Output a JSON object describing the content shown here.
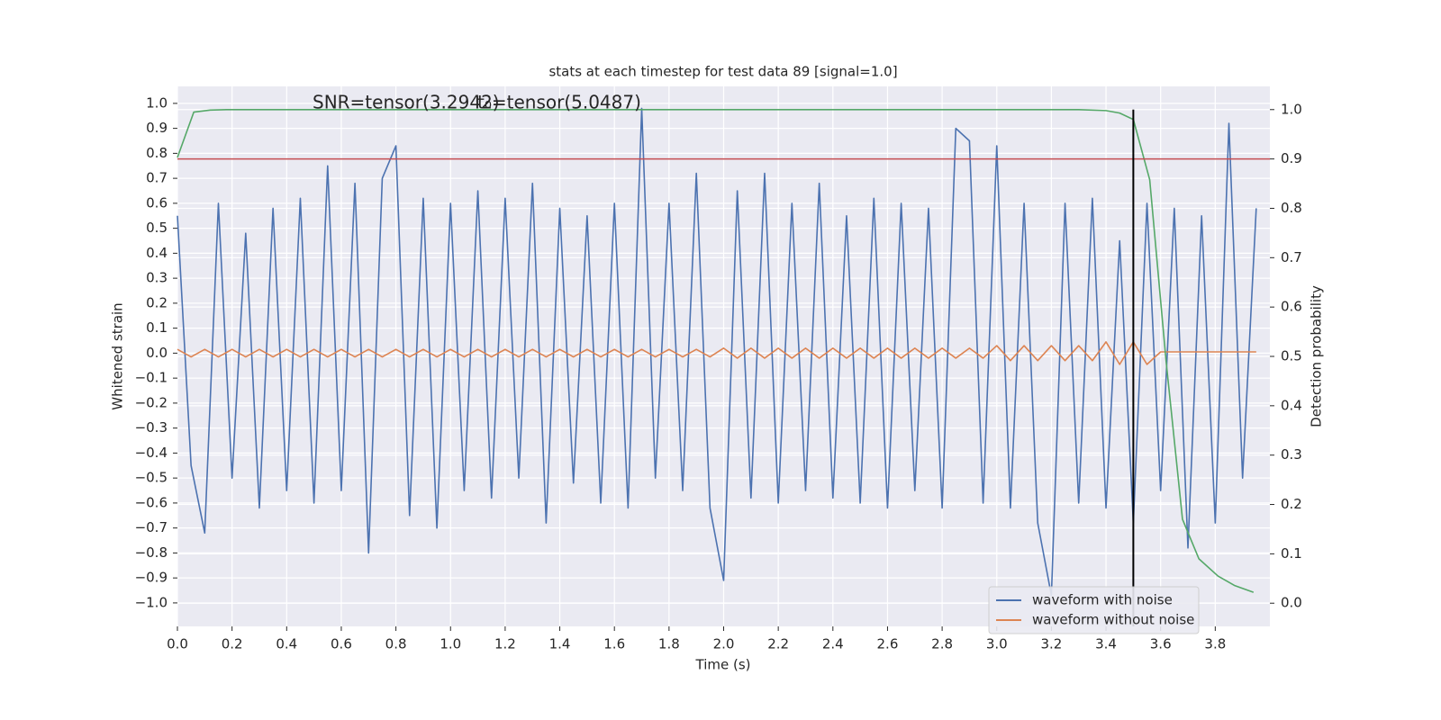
{
  "chart_data": {
    "type": "line",
    "title": "stats at each timestep for test data 89 [signal=1.0]",
    "xlabel": "Time (s)",
    "ylabel": "Whitened strain",
    "y2label": "Detection probability",
    "annotations": [
      "SNR=tensor(3.2942)",
      "t₀=tensor(5.0487)"
    ],
    "grid": true,
    "legend": "lower right",
    "xlim": [
      0,
      4.0
    ],
    "ylim": [
      -1.094,
      1.068
    ],
    "y2lim": [
      -0.047,
      1.047
    ],
    "xticks": [
      {
        "value": 0,
        "label": "0.0"
      },
      {
        "value": 0.2,
        "label": "0.2"
      },
      {
        "value": 0.4,
        "label": "0.4"
      },
      {
        "value": 0.6,
        "label": "0.6"
      },
      {
        "value": 0.8,
        "label": "0.8"
      },
      {
        "value": 1.0,
        "label": "1.0"
      },
      {
        "value": 1.2,
        "label": "1.2"
      },
      {
        "value": 1.4,
        "label": "1.4"
      },
      {
        "value": 1.6,
        "label": "1.6"
      },
      {
        "value": 1.8,
        "label": "1.8"
      },
      {
        "value": 2.0,
        "label": "2.0"
      },
      {
        "value": 2.2,
        "label": "2.2"
      },
      {
        "value": 2.4,
        "label": "2.4"
      },
      {
        "value": 2.6,
        "label": "2.6"
      },
      {
        "value": 2.8,
        "label": "2.8"
      },
      {
        "value": 3.0,
        "label": "3.0"
      },
      {
        "value": 3.2,
        "label": "3.2"
      },
      {
        "value": 3.4,
        "label": "3.4"
      },
      {
        "value": 3.6,
        "label": "3.6"
      },
      {
        "value": 3.8,
        "label": "3.8"
      }
    ],
    "yticks": [
      {
        "value": -1.0,
        "label": "−1.0"
      },
      {
        "value": -0.9,
        "label": "−0.9"
      },
      {
        "value": -0.8,
        "label": "−0.8"
      },
      {
        "value": -0.7,
        "label": "−0.7"
      },
      {
        "value": -0.6,
        "label": "−0.6"
      },
      {
        "value": -0.5,
        "label": "−0.5"
      },
      {
        "value": -0.4,
        "label": "−0.4"
      },
      {
        "value": -0.3,
        "label": "−0.3"
      },
      {
        "value": -0.2,
        "label": "−0.2"
      },
      {
        "value": -0.1,
        "label": "−0.1"
      },
      {
        "value": 0,
        "label": "0.0"
      },
      {
        "value": 0.1,
        "label": "0.1"
      },
      {
        "value": 0.2,
        "label": "0.2"
      },
      {
        "value": 0.3,
        "label": "0.3"
      },
      {
        "value": 0.4,
        "label": "0.4"
      },
      {
        "value": 0.5,
        "label": "0.5"
      },
      {
        "value": 0.6,
        "label": "0.6"
      },
      {
        "value": 0.7,
        "label": "0.7"
      },
      {
        "value": 0.8,
        "label": "0.8"
      },
      {
        "value": 0.9,
        "label": "0.9"
      },
      {
        "value": 1.0,
        "label": "1.0"
      }
    ],
    "y2ticks": [
      {
        "value": 0,
        "label": "0.0"
      },
      {
        "value": 0.1,
        "label": "0.1"
      },
      {
        "value": 0.2,
        "label": "0.2"
      },
      {
        "value": 0.3,
        "label": "0.3"
      },
      {
        "value": 0.4,
        "label": "0.4"
      },
      {
        "value": 0.5,
        "label": "0.5"
      },
      {
        "value": 0.6,
        "label": "0.6"
      },
      {
        "value": 0.7,
        "label": "0.7"
      },
      {
        "value": 0.8,
        "label": "0.8"
      },
      {
        "value": 0.9,
        "label": "0.9"
      },
      {
        "value": 1.0,
        "label": "1.0"
      }
    ],
    "x": [
      0,
      0.05,
      0.1,
      0.15,
      0.2,
      0.25,
      0.3,
      0.35,
      0.4,
      0.45,
      0.5,
      0.55,
      0.6,
      0.65,
      0.7,
      0.75,
      0.8,
      0.85,
      0.9,
      0.95,
      1.0,
      1.05,
      1.1,
      1.15,
      1.2,
      1.25,
      1.3,
      1.35,
      1.4,
      1.45,
      1.5,
      1.55,
      1.6,
      1.65,
      1.7,
      1.75,
      1.8,
      1.85,
      1.9,
      1.95,
      2.0,
      2.05,
      2.1,
      2.15,
      2.2,
      2.25,
      2.3,
      2.35,
      2.4,
      2.45,
      2.5,
      2.55,
      2.6,
      2.65,
      2.7,
      2.75,
      2.8,
      2.85,
      2.9,
      2.95,
      3.0,
      3.05,
      3.1,
      3.15,
      3.2,
      3.25,
      3.3,
      3.35,
      3.4,
      3.45,
      3.5,
      3.55,
      3.6,
      3.65,
      3.7,
      3.75,
      3.8,
      3.85,
      3.9,
      3.95
    ],
    "series": [
      {
        "name": "waveform with noise",
        "color": "#4c72b0",
        "values": [
          0.55,
          -0.45,
          -0.72,
          0.6,
          -0.5,
          0.48,
          -0.62,
          0.58,
          -0.55,
          0.62,
          -0.6,
          0.75,
          -0.55,
          0.68,
          -0.8,
          0.7,
          0.83,
          -0.65,
          0.62,
          -0.7,
          0.6,
          -0.55,
          0.65,
          -0.58,
          0.62,
          -0.5,
          0.68,
          -0.68,
          0.58,
          -0.52,
          0.55,
          -0.6,
          0.6,
          -0.62,
          0.98,
          -0.5,
          0.6,
          -0.55,
          0.72,
          -0.62,
          -0.91,
          0.65,
          -0.58,
          0.72,
          -0.6,
          0.6,
          -0.55,
          0.68,
          -0.58,
          0.55,
          -0.6,
          0.62,
          -0.62,
          0.6,
          -0.55,
          0.58,
          -0.62,
          0.9,
          0.85,
          -0.6,
          0.83,
          -0.62,
          0.6,
          -0.68,
          -0.97,
          0.6,
          -0.6,
          0.62,
          -0.62,
          0.45,
          -0.68,
          0.6,
          -0.55,
          0.58,
          -0.78,
          0.55,
          -0.68,
          0.92,
          -0.5,
          0.58
        ]
      },
      {
        "name": "waveform without noise",
        "color": "#dd8452",
        "values": [
          0.015,
          -0.015,
          0.015,
          -0.015,
          0.015,
          -0.015,
          0.015,
          -0.015,
          0.015,
          -0.015,
          0.015,
          -0.015,
          0.015,
          -0.015,
          0.015,
          -0.015,
          0.015,
          -0.015,
          0.015,
          -0.015,
          0.015,
          -0.015,
          0.015,
          -0.015,
          0.015,
          -0.015,
          0.015,
          -0.015,
          0.015,
          -0.015,
          0.015,
          -0.015,
          0.015,
          -0.015,
          0.015,
          -0.015,
          0.015,
          -0.015,
          0.015,
          -0.015,
          0.02,
          -0.02,
          0.02,
          -0.02,
          0.02,
          -0.02,
          0.02,
          -0.02,
          0.02,
          -0.02,
          0.02,
          -0.02,
          0.02,
          -0.02,
          0.02,
          -0.02,
          0.02,
          -0.02,
          0.02,
          -0.02,
          0.03,
          -0.03,
          0.03,
          -0.03,
          0.03,
          -0.03,
          0.03,
          -0.03,
          0.045,
          -0.045,
          0.045,
          -0.045,
          0.005,
          0.005,
          0.005,
          0.005,
          0.005,
          0.005,
          0.005,
          0.005
        ]
      },
      {
        "color": "#55a868",
        "axis": "y2",
        "x": [
          0,
          0.06,
          0.12,
          0.18,
          0.5,
          1.0,
          1.5,
          2.0,
          2.5,
          3.0,
          3.3,
          3.4,
          3.45,
          3.5,
          3.56,
          3.62,
          3.68,
          3.74,
          3.81,
          3.87,
          3.94
        ],
        "values": [
          0.903,
          0.995,
          0.999,
          1.0,
          1.0,
          1.0,
          1.0,
          1.0,
          1.0,
          1.0,
          1.0,
          0.998,
          0.993,
          0.98,
          0.858,
          0.49,
          0.17,
          0.09,
          0.055,
          0.036,
          0.022
        ]
      }
    ],
    "hlines": [
      {
        "value": 0.9,
        "axis": "y2",
        "color": "#c44e52"
      }
    ],
    "vlines": [
      {
        "value": 3.5,
        "color": "#000000"
      }
    ]
  }
}
